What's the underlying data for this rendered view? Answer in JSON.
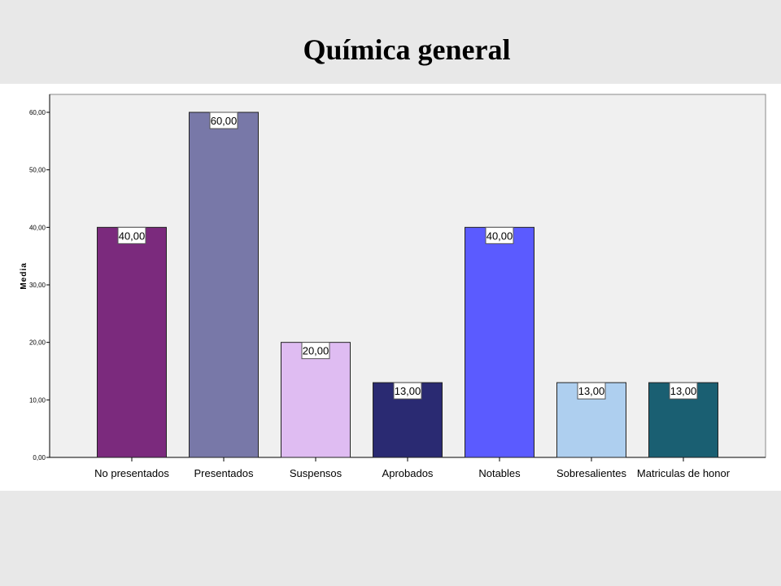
{
  "chart_data": {
    "type": "bar",
    "title": "Química general",
    "xlabel": "",
    "ylabel": "Media",
    "ylim": [
      0,
      60
    ],
    "yticks": [
      "0,00",
      "10,00",
      "20,00",
      "30,00",
      "40,00",
      "50,00",
      "60,00"
    ],
    "categories": [
      "No presentados",
      "Presentados",
      "Suspensos",
      "Aprobados",
      "Notables",
      "Sobresalientes",
      "Matriculas de honor"
    ],
    "values": [
      40,
      60,
      20,
      13,
      40,
      13,
      13
    ],
    "value_labels": [
      "40,00",
      "60,00",
      "20,00",
      "13,00",
      "40,00",
      "13,00",
      "13,00"
    ],
    "colors": [
      "#7b2a7d",
      "#7878a8",
      "#dfbcf2",
      "#2a2a72",
      "#5b5bff",
      "#aecfef",
      "#1a5f72"
    ],
    "grid": false,
    "legend": "none"
  }
}
